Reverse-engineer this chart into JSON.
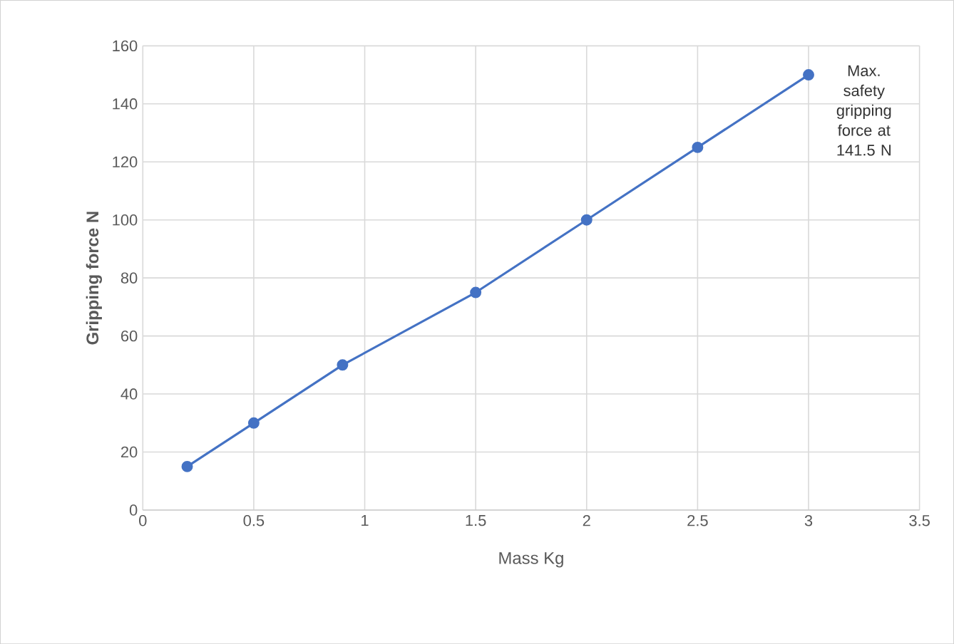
{
  "chart_data": {
    "type": "line",
    "xlabel": "Mass Kg",
    "ylabel": "Gripping force N",
    "x": [
      0.2,
      0.5,
      0.9,
      1.5,
      2,
      2.5,
      3
    ],
    "series": [
      {
        "color": "#4472c4",
        "values": [
          15,
          30,
          50,
          75,
          100,
          125,
          150
        ]
      }
    ],
    "xlim": [
      0,
      3.5
    ],
    "xticks": [
      0,
      0.5,
      1,
      1.5,
      2,
      2.5,
      3,
      3.5
    ],
    "ylim": [
      0,
      160
    ],
    "yticks": [
      0,
      20,
      40,
      60,
      80,
      100,
      120,
      140,
      160
    ],
    "grid": true,
    "marker": "circle",
    "line_style": "solid",
    "annotations": [
      "Max. safety gripping force at 141.5 N"
    ]
  }
}
